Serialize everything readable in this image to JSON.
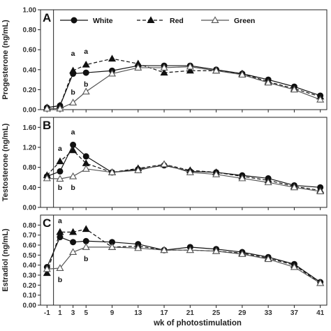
{
  "chart_data": [
    {
      "type": "line",
      "panel_label": "A",
      "ylabel": "Progesterone (ng/mL)",
      "ylim": [
        0,
        1.0
      ],
      "yticks": [
        "0.00",
        "0.20",
        "0.40",
        "0.60",
        "0.80",
        "1.00"
      ],
      "x": [
        -1,
        1,
        3,
        5,
        9,
        13,
        17,
        21,
        25,
        29,
        33,
        37,
        41
      ],
      "series": [
        {
          "name": "White",
          "marker": "filled-circle",
          "dash": "solid",
          "values": [
            0.02,
            0.04,
            0.36,
            0.37,
            0.39,
            0.44,
            0.44,
            0.44,
            0.4,
            0.36,
            0.3,
            0.23,
            0.14
          ]
        },
        {
          "name": "Red",
          "marker": "filled-triangle",
          "dash": "dashed",
          "values": [
            0.02,
            0.04,
            0.39,
            0.45,
            0.51,
            0.46,
            0.37,
            0.39,
            0.39,
            0.36,
            0.28,
            0.21,
            0.13
          ]
        },
        {
          "name": "Green",
          "marker": "open-triangle",
          "dash": "solid",
          "values": [
            0.01,
            0.01,
            0.07,
            0.18,
            0.36,
            0.42,
            0.42,
            0.43,
            0.39,
            0.35,
            0.27,
            0.2,
            0.1
          ]
        }
      ],
      "annotations": [
        {
          "text": "a",
          "x": 3,
          "y": 0.54
        },
        {
          "text": "a",
          "x": 5,
          "y": 0.56
        },
        {
          "text": "b",
          "x": 3,
          "y": 0.15
        },
        {
          "text": "b",
          "x": 5,
          "y": 0.23
        }
      ],
      "legend": {
        "placement": "top",
        "entries": [
          "White",
          "Red",
          "Green"
        ]
      }
    },
    {
      "type": "line",
      "panel_label": "B",
      "ylabel": "Testosterone (ng/mL)",
      "ylim": [
        0,
        1.8
      ],
      "yticks": [
        "0.00",
        "0.40",
        "0.80",
        "1.20",
        "1.60"
      ],
      "x": [
        -1,
        1,
        3,
        5,
        9,
        13,
        17,
        21,
        25,
        29,
        33,
        37,
        41
      ],
      "series": [
        {
          "name": "White",
          "marker": "filled-circle",
          "dash": "solid",
          "values": [
            0.62,
            0.72,
            1.25,
            1.02,
            0.7,
            0.76,
            0.84,
            0.72,
            0.7,
            0.64,
            0.58,
            0.44,
            0.4
          ]
        },
        {
          "name": "Red",
          "marker": "filled-triangle",
          "dash": "dashed",
          "values": [
            0.64,
            0.92,
            1.14,
            0.88,
            0.7,
            0.78,
            0.86,
            0.74,
            0.7,
            0.62,
            0.54,
            0.42,
            0.34
          ]
        },
        {
          "name": "Green",
          "marker": "open-triangle",
          "dash": "solid",
          "values": [
            0.58,
            0.57,
            0.62,
            0.77,
            0.7,
            0.74,
            0.86,
            0.7,
            0.66,
            0.58,
            0.5,
            0.4,
            0.32
          ]
        }
      ],
      "annotations": [
        {
          "text": "a",
          "x": 3,
          "y": 1.46
        },
        {
          "text": "a",
          "x": 1,
          "y": 1.13
        },
        {
          "text": "b",
          "x": 1,
          "y": 0.35
        },
        {
          "text": "b",
          "x": 3,
          "y": 0.35
        }
      ]
    },
    {
      "type": "line",
      "panel_label": "C",
      "ylabel": "Estradiol (ng/mL)",
      "ylim": [
        0,
        0.9
      ],
      "yticks": [
        "0.00",
        "0.10",
        "0.20",
        "0.30",
        "0.40",
        "0.50",
        "0.60",
        "0.70",
        "0.80"
      ],
      "xticks": [
        "-1",
        "1",
        "3",
        "5",
        "9",
        "13",
        "17",
        "21",
        "25",
        "29",
        "33",
        "37",
        "41"
      ],
      "xlabel": "wk of photostimulation",
      "x": [
        -1,
        1,
        3,
        5,
        9,
        13,
        17,
        21,
        25,
        29,
        33,
        37,
        41
      ],
      "series": [
        {
          "name": "White",
          "marker": "filled-circle",
          "dash": "solid",
          "values": [
            0.38,
            0.68,
            0.63,
            0.64,
            0.63,
            0.61,
            0.55,
            0.58,
            0.56,
            0.53,
            0.48,
            0.41,
            0.23
          ]
        },
        {
          "name": "Red",
          "marker": "filled-triangle",
          "dash": "dashed",
          "values": [
            0.32,
            0.73,
            0.73,
            0.76,
            0.58,
            0.59,
            0.55,
            0.55,
            0.54,
            0.52,
            0.47,
            0.4,
            0.22
          ]
        },
        {
          "name": "Green",
          "marker": "open-triangle",
          "dash": "solid",
          "values": [
            0.36,
            0.37,
            0.53,
            0.58,
            0.58,
            0.57,
            0.55,
            0.55,
            0.54,
            0.51,
            0.46,
            0.38,
            0.22
          ]
        }
      ],
      "annotations": [
        {
          "text": "a",
          "x": 1,
          "y": 0.82
        },
        {
          "text": "b",
          "x": 1,
          "y": 0.23
        },
        {
          "text": "b",
          "x": 5,
          "y": 0.44
        }
      ]
    }
  ],
  "colors": {
    "white_series": "#111111",
    "red_series": "#111111",
    "green_series": "#555555",
    "axis": "#222222"
  }
}
